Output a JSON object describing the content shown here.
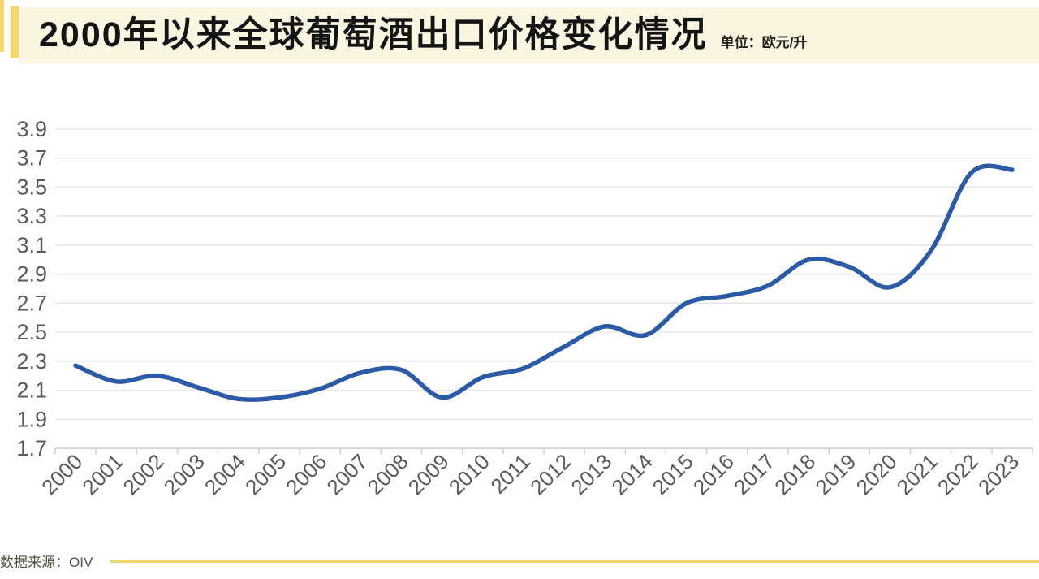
{
  "header": {
    "title": "2000年以来全球葡萄酒出口价格变化情况",
    "unit_label": "单位：欧元/升"
  },
  "footer": {
    "source_label": "数据来源：OIV"
  },
  "colors": {
    "accent_yellow": "#F5D668",
    "header_band_bg": "#FAF6E1",
    "line_blue": "#2B5AA6",
    "gridline": "#E5E5E5",
    "axis": "#CFCCC8",
    "tick_label": "#5C5955",
    "footer_rule_yellow": "#ECD671",
    "footer_text": "#564F43"
  },
  "chart_data": {
    "type": "line",
    "smooth": true,
    "title": "2000年以来全球葡萄酒出口价格变化情况",
    "unit": "欧元/升",
    "categories": [
      "2000",
      "2001",
      "2002",
      "2003",
      "2004",
      "2005",
      "2006",
      "2007",
      "2008",
      "2009",
      "2010",
      "2011",
      "2012",
      "2013",
      "2014",
      "2015",
      "2016",
      "2017",
      "2018",
      "2019",
      "2020",
      "2021",
      "2022",
      "2023"
    ],
    "values": [
      2.27,
      2.16,
      2.2,
      2.12,
      2.04,
      2.05,
      2.11,
      2.22,
      2.24,
      2.05,
      2.19,
      2.25,
      2.4,
      2.54,
      2.48,
      2.7,
      2.75,
      2.82,
      3.0,
      2.95,
      2.81,
      3.06,
      3.6,
      3.62
    ],
    "xlabel": "",
    "ylabel": "",
    "ylim": [
      1.7,
      3.9
    ],
    "ytick_step": 0.2,
    "yticks": [
      "1.7",
      "1.9",
      "2.1",
      "2.3",
      "2.5",
      "2.7",
      "2.9",
      "3.1",
      "3.3",
      "3.5",
      "3.7",
      "3.9"
    ],
    "grid": true,
    "legend": false,
    "x_label_rotation_deg": -45
  }
}
